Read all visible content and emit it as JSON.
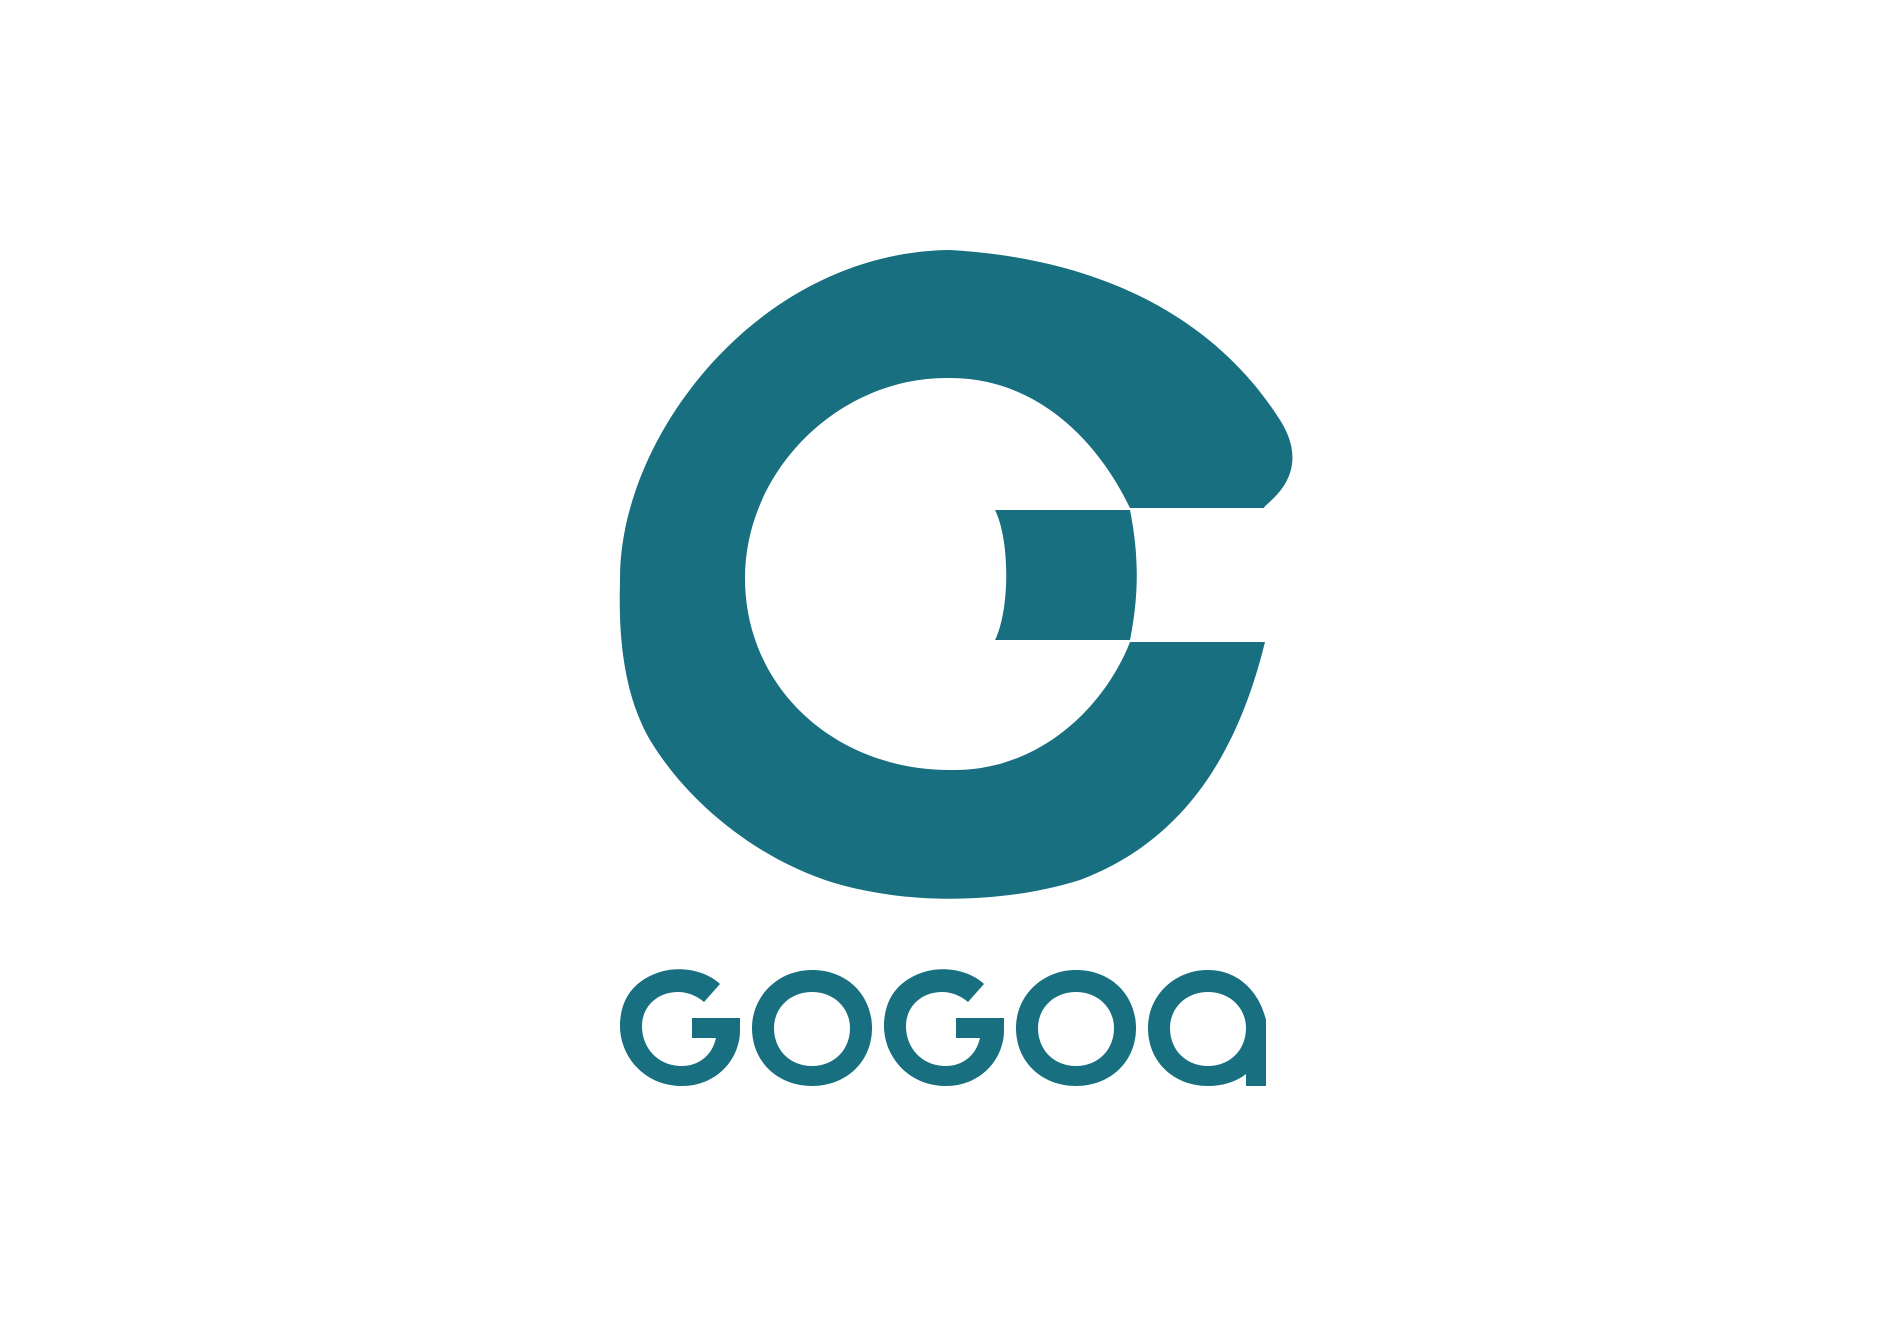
{
  "brand": {
    "wordmark": "GOGOQ",
    "color": "#186F80",
    "background": "#FFFFFF"
  },
  "icons": {
    "emblem": "stylized-g-logo-icon"
  }
}
